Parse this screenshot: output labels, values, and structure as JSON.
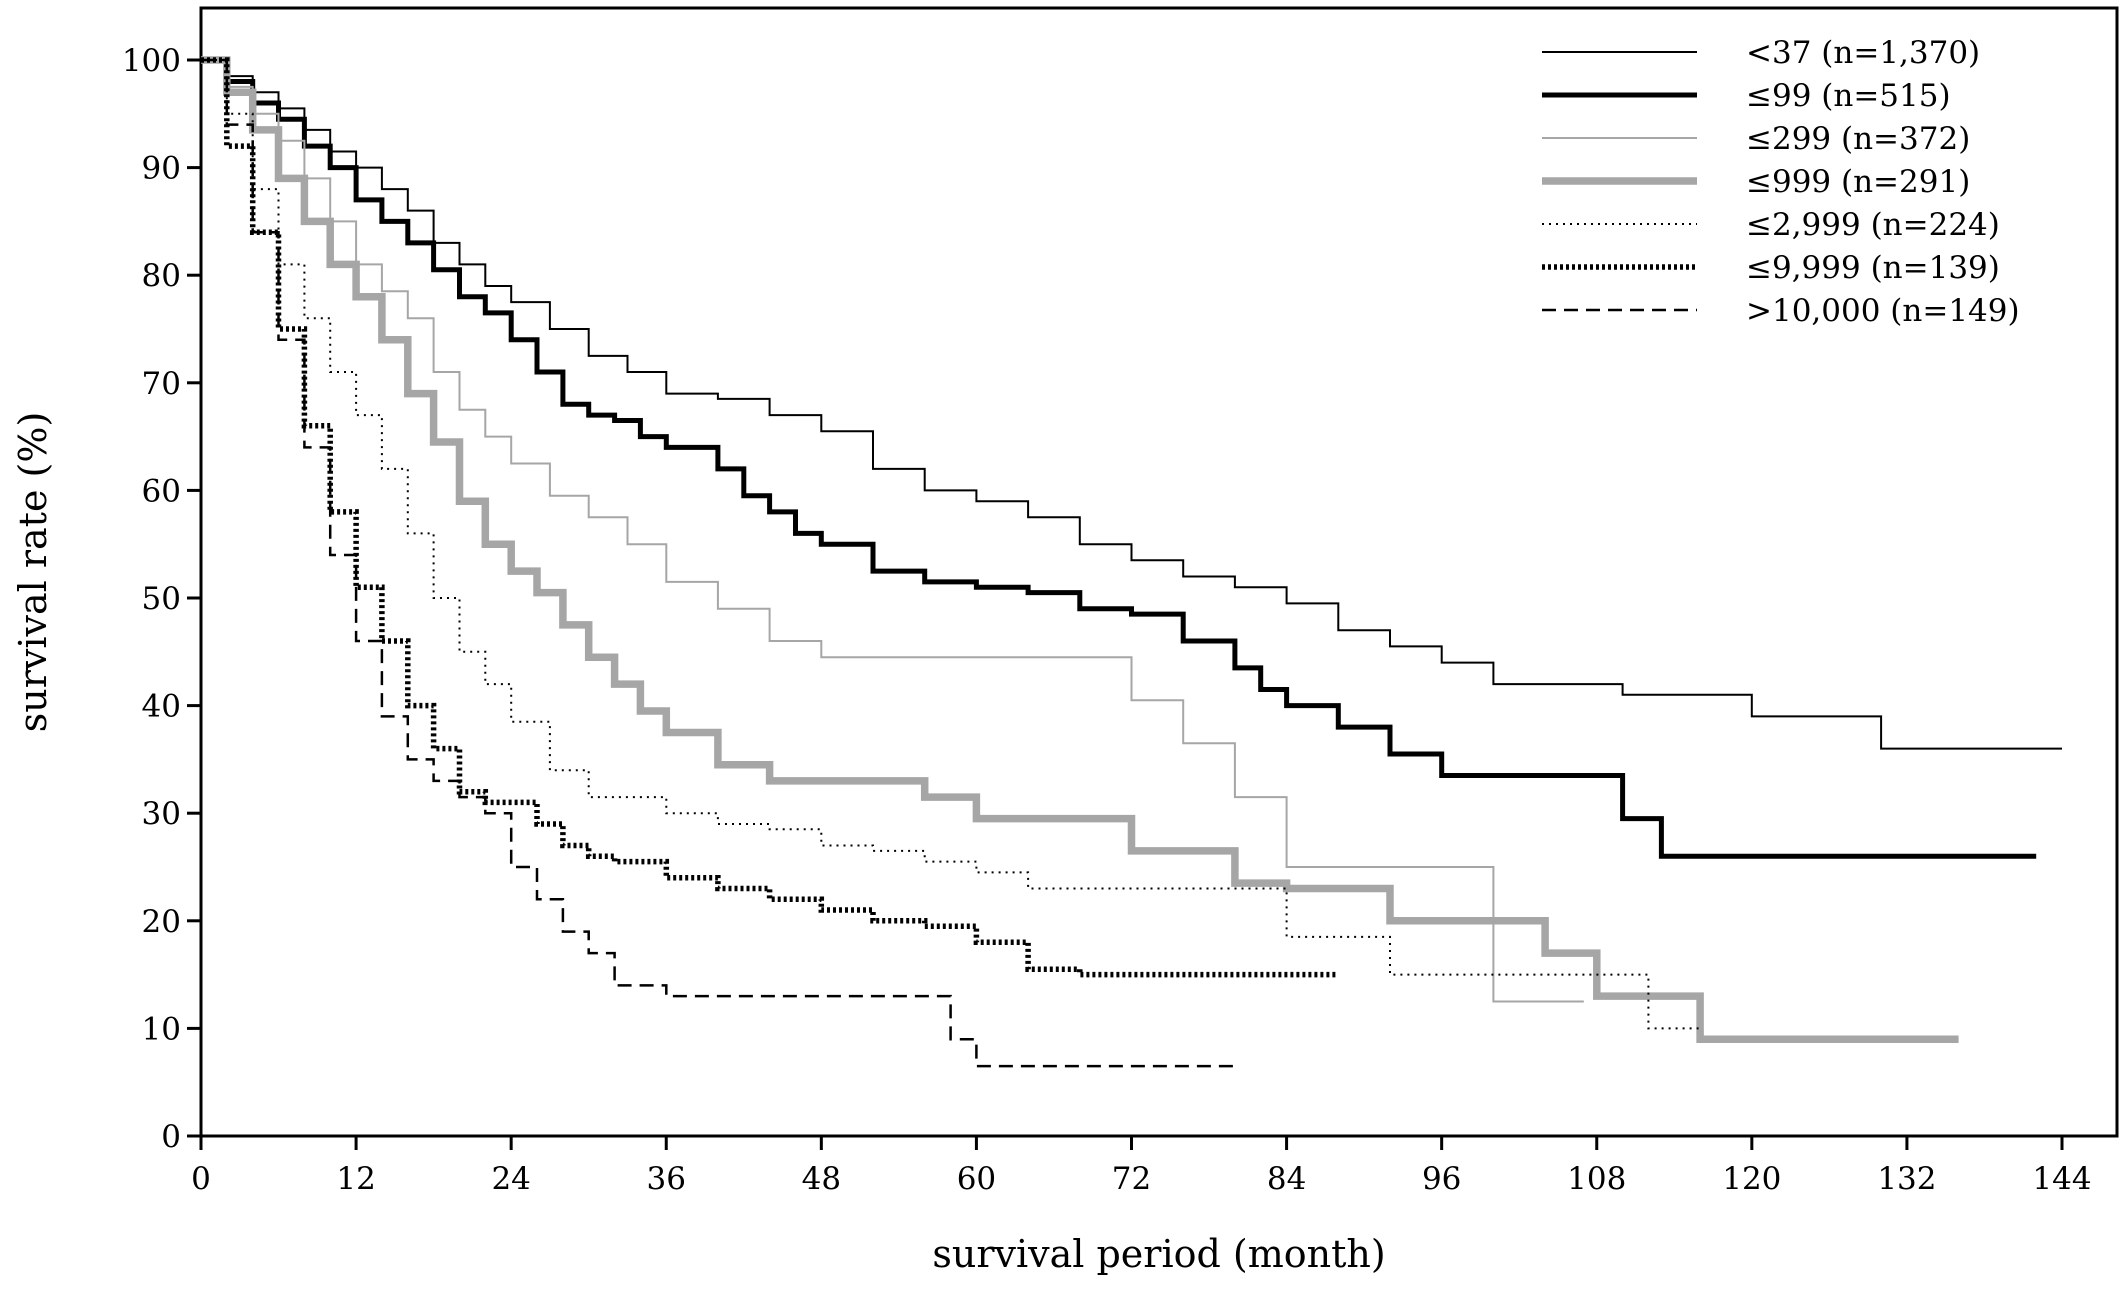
{
  "chart_data": {
    "type": "line",
    "title": "",
    "xlabel": "survival period (month)",
    "ylabel": "survival rate (%)",
    "xlim": [
      0,
      144
    ],
    "ylim": [
      0,
      100
    ],
    "xticks": [
      0,
      12,
      24,
      36,
      48,
      60,
      72,
      84,
      96,
      108,
      120,
      132,
      144
    ],
    "yticks": [
      0,
      10,
      20,
      30,
      40,
      50,
      60,
      70,
      80,
      90,
      100
    ],
    "grid": false,
    "legend_position": "top-right",
    "series": [
      {
        "name": "<37 (n=1,370)",
        "style": "solid-thin",
        "color": "#000000",
        "x": [
          0,
          2,
          4,
          6,
          8,
          10,
          12,
          14,
          16,
          18,
          20,
          22,
          24,
          27,
          30,
          33,
          36,
          40,
          44,
          48,
          52,
          56,
          60,
          64,
          68,
          72,
          76,
          80,
          84,
          88,
          92,
          96,
          100,
          110,
          120,
          130,
          144
        ],
        "y": [
          100,
          98.5,
          97,
          95.5,
          93.5,
          91.5,
          90,
          88,
          86,
          83,
          81,
          79,
          77.5,
          75,
          72.5,
          71,
          69,
          68.5,
          67,
          65.5,
          62,
          60,
          59,
          57.5,
          55,
          53.5,
          52,
          51,
          49.5,
          47,
          45.5,
          44,
          42,
          41,
          39,
          36,
          36
        ]
      },
      {
        "name": "≤99 (n=515)",
        "style": "solid-thick",
        "color": "#000000",
        "x": [
          0,
          2,
          4,
          6,
          8,
          10,
          12,
          14,
          16,
          18,
          20,
          22,
          24,
          26,
          28,
          30,
          32,
          34,
          36,
          40,
          42,
          44,
          46,
          48,
          52,
          56,
          60,
          64,
          68,
          72,
          76,
          80,
          82,
          84,
          88,
          92,
          96,
          100,
          104,
          110,
          113,
          142
        ],
        "y": [
          100,
          98,
          96,
          94.5,
          92,
          90,
          87,
          85,
          83,
          80.5,
          78,
          76.5,
          74,
          71,
          68,
          67,
          66.5,
          65,
          64,
          62,
          59.5,
          58,
          56,
          55,
          52.5,
          51.5,
          51,
          50.5,
          49,
          48.5,
          46,
          43.5,
          41.5,
          40,
          38,
          35.5,
          33.5,
          33.5,
          33.5,
          29.5,
          26,
          26
        ]
      },
      {
        "name": "≤299 (n=372)",
        "style": "solid-thin",
        "color": "#a6a6a6",
        "x": [
          0,
          2,
          4,
          6,
          8,
          10,
          12,
          14,
          16,
          18,
          20,
          22,
          24,
          27,
          30,
          33,
          36,
          40,
          44,
          48,
          52,
          56,
          60,
          64,
          68,
          72,
          76,
          80,
          84,
          88,
          92,
          96,
          100,
          104,
          107
        ],
        "y": [
          100,
          97.5,
          95,
          92.5,
          89,
          85,
          81,
          78.5,
          76,
          71,
          67.5,
          65,
          62.5,
          59.5,
          57.5,
          55,
          51.5,
          49,
          46,
          44.5,
          44.5,
          44.5,
          44.5,
          44.5,
          44.5,
          40.5,
          36.5,
          31.5,
          25,
          25,
          25,
          25,
          12.5,
          12.5,
          12.5
        ]
      },
      {
        "name": "≤999 (n=291)",
        "style": "solid-heavy",
        "color": "#a6a6a6",
        "x": [
          0,
          2,
          4,
          6,
          8,
          10,
          12,
          14,
          16,
          18,
          20,
          22,
          24,
          26,
          28,
          30,
          32,
          34,
          36,
          40,
          44,
          48,
          52,
          56,
          60,
          64,
          68,
          72,
          76,
          80,
          84,
          88,
          92,
          96,
          100,
          104,
          108,
          112,
          116,
          120,
          136
        ],
        "y": [
          100,
          97,
          93.5,
          89,
          85,
          81,
          78,
          74,
          69,
          64.5,
          59,
          55,
          52.5,
          50.5,
          47.5,
          44.5,
          42,
          39.5,
          37.5,
          34.5,
          33,
          33,
          33,
          31.5,
          29.5,
          29.5,
          29.5,
          26.5,
          26.5,
          23.5,
          23,
          23,
          20,
          20,
          20,
          17,
          13,
          13,
          9,
          9,
          9
        ]
      },
      {
        "name": "≤2,999 (n=224)",
        "style": "dotted-thin",
        "color": "#000000",
        "x": [
          0,
          2,
          4,
          6,
          8,
          10,
          12,
          14,
          16,
          18,
          20,
          22,
          24,
          27,
          30,
          33,
          36,
          40,
          44,
          48,
          52,
          56,
          60,
          64,
          68,
          72,
          76,
          80,
          84,
          88,
          92,
          96,
          100,
          104,
          108,
          112,
          116
        ],
        "y": [
          100,
          95,
          88,
          81,
          76,
          71,
          67,
          62,
          56,
          50,
          45,
          42,
          38.5,
          34,
          31.5,
          31.5,
          30,
          29,
          28.5,
          27,
          26.5,
          25.5,
          24.5,
          23,
          23,
          23,
          23,
          23,
          18.5,
          18.5,
          15,
          15,
          15,
          15,
          15,
          10,
          10
        ]
      },
      {
        "name": "≤9,999 (n=139)",
        "style": "dotted-thick",
        "color": "#000000",
        "x": [
          0,
          2,
          4,
          6,
          8,
          10,
          12,
          14,
          16,
          18,
          20,
          22,
          24,
          26,
          28,
          30,
          32,
          36,
          40,
          44,
          48,
          52,
          56,
          60,
          64,
          68,
          72,
          76,
          80,
          84,
          88
        ],
        "y": [
          100,
          92,
          84,
          75,
          66,
          58,
          51,
          46,
          40,
          36,
          32,
          31,
          31,
          29,
          27,
          26,
          25.5,
          24,
          23,
          22,
          21,
          20,
          19.5,
          18,
          15.5,
          15,
          15,
          15,
          15,
          15,
          15
        ]
      },
      {
        "name": ">10,000 (n=149)",
        "style": "dashed",
        "color": "#000000",
        "x": [
          0,
          2,
          4,
          6,
          8,
          10,
          12,
          14,
          16,
          18,
          20,
          22,
          24,
          26,
          28,
          30,
          32,
          36,
          40,
          44,
          48,
          52,
          56,
          58,
          60,
          64,
          68,
          72,
          76,
          80
        ],
        "y": [
          100,
          94,
          84,
          74,
          64,
          54,
          46,
          39,
          35,
          33,
          31.5,
          30,
          25,
          22,
          19,
          17,
          14,
          13,
          13,
          13,
          13,
          13,
          13,
          9,
          6.5,
          6.5,
          6.5,
          6.5,
          6.5,
          6.5
        ]
      }
    ]
  }
}
